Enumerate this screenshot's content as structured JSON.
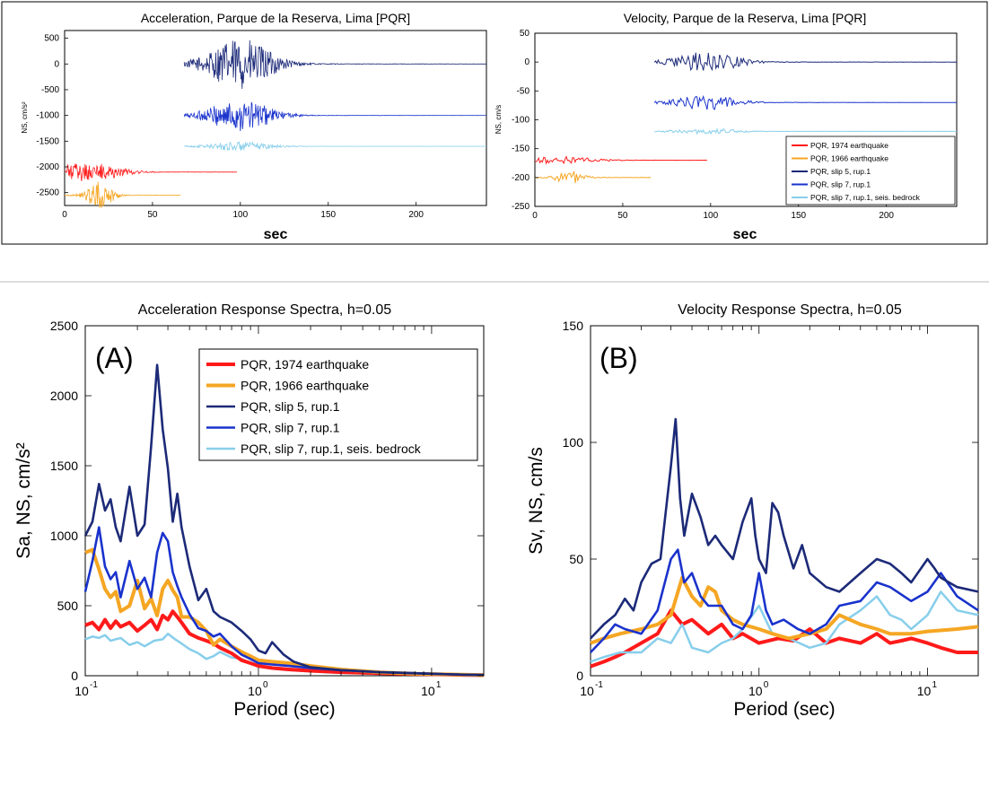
{
  "colors": {
    "eq1974": "#ff1a1a",
    "eq1966": "#f5a623",
    "slip5": "#1c2a78",
    "slip7": "#1a33cc",
    "bedrock": "#87ceeb"
  },
  "chart_data": [
    {
      "id": "accel-ts",
      "type": "line",
      "title": "Acceleration, Parque de la Reserva, Lima [PQR]",
      "xlabel": "sec",
      "ylabel": "NS, cm/s²",
      "xlim": [
        0,
        240
      ],
      "ylim": [
        -2750,
        650
      ],
      "xticks": [
        0,
        50,
        100,
        150,
        200
      ],
      "yticks": [
        500,
        0,
        -500,
        -1000,
        -1500,
        -2000,
        -2500
      ],
      "grid": false,
      "series": [
        {
          "key": "slip5",
          "offset": 0,
          "start": 68,
          "end": 240,
          "peak_t": 100,
          "amp": 480,
          "spread": 20
        },
        {
          "key": "slip7",
          "offset": -1000,
          "start": 68,
          "end": 240,
          "peak_t": 100,
          "amp": 300,
          "spread": 20
        },
        {
          "key": "bedrock",
          "offset": -1600,
          "start": 68,
          "end": 240,
          "peak_t": 100,
          "amp": 90,
          "spread": 20
        },
        {
          "key": "eq1974",
          "offset": -2100,
          "start": 0,
          "end": 98,
          "peak_t": 12,
          "amp": 180,
          "spread": 22
        },
        {
          "key": "eq1966",
          "offset": -2550,
          "start": 0,
          "end": 66,
          "peak_t": 20,
          "amp": 260,
          "spread": 8
        }
      ]
    },
    {
      "id": "vel-ts",
      "type": "line",
      "title": "Velocity, Parque de la Reserva, Lima [PQR]",
      "xlabel": "sec",
      "ylabel": "NS, cm/s",
      "xlim": [
        0,
        240
      ],
      "ylim": [
        -250,
        50
      ],
      "xticks": [
        0,
        50,
        100,
        150,
        200
      ],
      "yticks": [
        50,
        0,
        -50,
        -100,
        -150,
        -200,
        -250
      ],
      "grid": false,
      "legend_position": "bottom-right",
      "legend": [
        {
          "key": "eq1974",
          "label": "PQR, 1974 earthquake"
        },
        {
          "key": "eq1966",
          "label": "PQR, 1966 earthquake"
        },
        {
          "key": "slip5",
          "label": "PQR, slip 5, rup.1"
        },
        {
          "key": "slip7",
          "label": "PQR, slip 7, rup.1"
        },
        {
          "key": "bedrock",
          "label": "PQR, slip 7, rup.1, seis. bedrock"
        }
      ],
      "series": [
        {
          "key": "slip5",
          "offset": 0,
          "start": 68,
          "end": 240,
          "peak_t": 98,
          "amp": 17,
          "spread": 20
        },
        {
          "key": "slip7",
          "offset": -70,
          "start": 68,
          "end": 240,
          "peak_t": 98,
          "amp": 12,
          "spread": 20
        },
        {
          "key": "bedrock",
          "offset": -120,
          "start": 68,
          "end": 240,
          "peak_t": 98,
          "amp": 5,
          "spread": 20
        },
        {
          "key": "eq1974",
          "offset": -170,
          "start": 0,
          "end": 98,
          "peak_t": 15,
          "amp": 6,
          "spread": 22
        },
        {
          "key": "eq1966",
          "offset": -200,
          "start": 0,
          "end": 66,
          "peak_t": 20,
          "amp": 12,
          "spread": 8
        }
      ]
    },
    {
      "id": "accel-spec",
      "type": "line",
      "title": "Acceleration Response Spectra, h=0.05",
      "panel_label": "(A)",
      "xlabel": "Period (sec)",
      "ylabel": "Sa, NS, cm/s²",
      "xscale": "log",
      "xlim": [
        0.1,
        20
      ],
      "ylim": [
        0,
        2500
      ],
      "yticks": [
        0,
        500,
        1000,
        1500,
        2000,
        2500
      ],
      "xtick_labels": [
        {
          "v": 0.1,
          "b": "10",
          "e": "-1"
        },
        {
          "v": 1,
          "b": "10",
          "e": "0"
        },
        {
          "v": 10,
          "b": "10",
          "e": "1"
        }
      ],
      "grid": false,
      "legend_position": "top-right",
      "legend": [
        {
          "key": "eq1974",
          "label": "PQR, 1974 earthquake"
        },
        {
          "key": "eq1966",
          "label": "PQR, 1966 earthquake"
        },
        {
          "key": "slip5",
          "label": "PQR, slip 5, rup.1"
        },
        {
          "key": "slip7",
          "label": "PQR, slip 7, rup.1"
        },
        {
          "key": "bedrock",
          "label": "PQR, slip 7, rup.1, seis. bedrock"
        }
      ],
      "series": [
        {
          "key": "bedrock",
          "x": [
            0.1,
            0.11,
            0.12,
            0.13,
            0.14,
            0.16,
            0.18,
            0.2,
            0.22,
            0.25,
            0.28,
            0.3,
            0.33,
            0.36,
            0.4,
            0.45,
            0.5,
            0.55,
            0.6,
            0.7,
            0.8,
            0.9,
            1,
            1.2,
            1.5,
            2,
            3,
            5,
            8,
            10,
            15,
            20
          ],
          "y": [
            260,
            280,
            270,
            290,
            250,
            270,
            220,
            240,
            210,
            250,
            260,
            300,
            260,
            230,
            190,
            160,
            120,
            140,
            170,
            130,
            120,
            90,
            70,
            50,
            40,
            30,
            20,
            15,
            10,
            8,
            5,
            3
          ]
        },
        {
          "key": "eq1974",
          "x": [
            0.1,
            0.11,
            0.12,
            0.13,
            0.14,
            0.15,
            0.16,
            0.18,
            0.2,
            0.22,
            0.24,
            0.26,
            0.28,
            0.3,
            0.32,
            0.34,
            0.36,
            0.4,
            0.45,
            0.5,
            0.55,
            0.6,
            0.7,
            0.8,
            0.9,
            1,
            1.2,
            1.5,
            2,
            3,
            5,
            8,
            10,
            15,
            20
          ],
          "y": [
            360,
            380,
            330,
            400,
            340,
            390,
            350,
            380,
            320,
            360,
            400,
            330,
            430,
            400,
            460,
            420,
            380,
            300,
            270,
            250,
            230,
            200,
            160,
            110,
            90,
            70,
            55,
            45,
            35,
            25,
            18,
            12,
            10,
            6,
            4
          ]
        },
        {
          "key": "eq1966",
          "x": [
            0.1,
            0.11,
            0.12,
            0.13,
            0.14,
            0.15,
            0.16,
            0.18,
            0.2,
            0.22,
            0.24,
            0.26,
            0.28,
            0.3,
            0.32,
            0.34,
            0.36,
            0.4,
            0.45,
            0.5,
            0.55,
            0.6,
            0.7,
            0.8,
            0.9,
            1,
            1.2,
            1.5,
            2,
            3,
            5,
            8,
            10,
            15,
            20
          ],
          "y": [
            880,
            900,
            760,
            620,
            560,
            600,
            460,
            500,
            680,
            480,
            550,
            430,
            620,
            680,
            610,
            560,
            420,
            420,
            380,
            320,
            220,
            260,
            210,
            170,
            140,
            110,
            100,
            90,
            70,
            45,
            25,
            15,
            12,
            8,
            5
          ]
        },
        {
          "key": "slip7",
          "x": [
            0.1,
            0.11,
            0.12,
            0.13,
            0.14,
            0.15,
            0.16,
            0.18,
            0.2,
            0.22,
            0.24,
            0.26,
            0.28,
            0.3,
            0.32,
            0.34,
            0.36,
            0.4,
            0.45,
            0.5,
            0.55,
            0.6,
            0.7,
            0.8,
            0.9,
            1,
            1.2,
            1.5,
            2,
            3,
            5,
            8,
            10,
            15,
            20
          ],
          "y": [
            600,
            820,
            1060,
            780,
            690,
            740,
            560,
            820,
            620,
            700,
            560,
            880,
            1020,
            960,
            740,
            640,
            560,
            440,
            340,
            320,
            280,
            300,
            210,
            150,
            120,
            90,
            80,
            70,
            55,
            40,
            25,
            18,
            14,
            8,
            5
          ]
        },
        {
          "key": "slip5",
          "x": [
            0.1,
            0.11,
            0.12,
            0.13,
            0.14,
            0.15,
            0.16,
            0.18,
            0.2,
            0.22,
            0.24,
            0.26,
            0.28,
            0.3,
            0.32,
            0.34,
            0.36,
            0.4,
            0.45,
            0.5,
            0.55,
            0.6,
            0.7,
            0.8,
            0.9,
            1,
            1.1,
            1.2,
            1.4,
            1.6,
            2,
            3,
            5,
            8,
            10,
            15,
            20
          ],
          "y": [
            1000,
            1100,
            1370,
            1180,
            1260,
            1060,
            960,
            1350,
            1000,
            1080,
            1640,
            2220,
            1760,
            1480,
            1100,
            1300,
            1060,
            780,
            540,
            620,
            460,
            420,
            380,
            320,
            260,
            180,
            160,
            240,
            150,
            100,
            60,
            40,
            25,
            18,
            14,
            8,
            5
          ]
        }
      ]
    },
    {
      "id": "vel-spec",
      "type": "line",
      "title": "Velocity Response Spectra, h=0.05",
      "panel_label": "(B)",
      "xlabel": "Period (sec)",
      "ylabel": "Sv, NS, cm/s",
      "xscale": "log",
      "xlim": [
        0.1,
        20
      ],
      "ylim": [
        0,
        150
      ],
      "yticks": [
        0,
        50,
        100,
        150
      ],
      "xtick_labels": [
        {
          "v": 0.1,
          "b": "10",
          "e": "-1"
        },
        {
          "v": 1,
          "b": "10",
          "e": "0"
        },
        {
          "v": 10,
          "b": "10",
          "e": "1"
        }
      ],
      "grid": false,
      "series": [
        {
          "key": "eq1974",
          "x": [
            0.1,
            0.12,
            0.14,
            0.16,
            0.2,
            0.25,
            0.3,
            0.35,
            0.4,
            0.5,
            0.6,
            0.7,
            0.8,
            1,
            1.3,
            1.6,
            2,
            2.5,
            3,
            4,
            5,
            6,
            7,
            8,
            10,
            12,
            15,
            20
          ],
          "y": [
            4,
            6,
            8,
            10,
            14,
            18,
            28,
            22,
            24,
            18,
            22,
            16,
            18,
            14,
            16,
            15,
            20,
            14,
            16,
            14,
            18,
            14,
            15,
            16,
            14,
            12,
            10,
            10
          ]
        },
        {
          "key": "bedrock",
          "x": [
            0.1,
            0.12,
            0.15,
            0.2,
            0.25,
            0.3,
            0.35,
            0.4,
            0.5,
            0.6,
            0.7,
            0.8,
            1,
            1.2,
            1.5,
            2,
            2.5,
            3,
            4,
            5,
            6,
            7,
            8,
            10,
            12,
            15,
            20
          ],
          "y": [
            6,
            8,
            10,
            10,
            16,
            14,
            22,
            12,
            10,
            14,
            16,
            20,
            30,
            18,
            16,
            12,
            14,
            22,
            28,
            34,
            26,
            24,
            20,
            26,
            36,
            28,
            26
          ]
        },
        {
          "key": "eq1966",
          "x": [
            0.1,
            0.12,
            0.15,
            0.2,
            0.25,
            0.3,
            0.35,
            0.4,
            0.45,
            0.5,
            0.55,
            0.6,
            0.7,
            0.8,
            1,
            1.2,
            1.5,
            2,
            2.5,
            3,
            4,
            5,
            6,
            8,
            10,
            15,
            20
          ],
          "y": [
            14,
            16,
            18,
            20,
            22,
            26,
            42,
            34,
            30,
            38,
            36,
            28,
            24,
            22,
            20,
            18,
            16,
            18,
            20,
            26,
            22,
            20,
            18,
            18,
            19,
            20,
            21
          ]
        },
        {
          "key": "slip7",
          "x": [
            0.1,
            0.12,
            0.14,
            0.16,
            0.2,
            0.25,
            0.3,
            0.33,
            0.36,
            0.4,
            0.45,
            0.5,
            0.6,
            0.7,
            0.8,
            0.9,
            1,
            1.1,
            1.2,
            1.4,
            1.7,
            2,
            2.5,
            3,
            4,
            5,
            6,
            8,
            10,
            12,
            15,
            20
          ],
          "y": [
            10,
            16,
            22,
            20,
            18,
            28,
            50,
            54,
            40,
            44,
            34,
            30,
            30,
            22,
            20,
            26,
            44,
            28,
            22,
            24,
            20,
            18,
            22,
            30,
            32,
            40,
            38,
            32,
            36,
            44,
            34,
            28
          ]
        },
        {
          "key": "slip5",
          "x": [
            0.1,
            0.12,
            0.14,
            0.16,
            0.18,
            0.2,
            0.23,
            0.26,
            0.3,
            0.32,
            0.34,
            0.36,
            0.4,
            0.45,
            0.5,
            0.55,
            0.6,
            0.7,
            0.8,
            0.9,
            0.95,
            1,
            1.1,
            1.2,
            1.3,
            1.4,
            1.6,
            1.8,
            2,
            2.5,
            3,
            4,
            5,
            6,
            7,
            8,
            10,
            11,
            12,
            15,
            20
          ],
          "y": [
            16,
            22,
            26,
            33,
            28,
            40,
            48,
            50,
            90,
            110,
            76,
            60,
            78,
            68,
            56,
            60,
            56,
            50,
            66,
            76,
            60,
            50,
            44,
            74,
            70,
            60,
            46,
            56,
            44,
            38,
            36,
            44,
            50,
            48,
            44,
            40,
            50,
            46,
            42,
            38,
            36
          ]
        }
      ]
    }
  ]
}
